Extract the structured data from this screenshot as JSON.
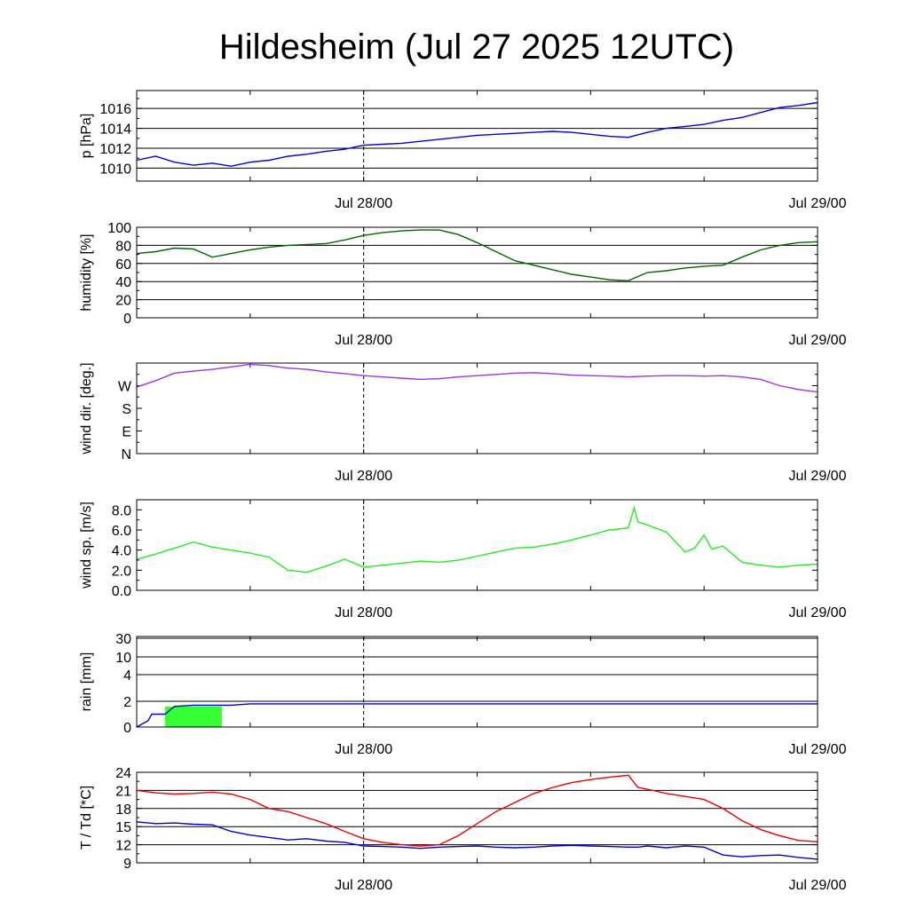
{
  "title": "Hildesheim (Jul 27 2025 12UTC)",
  "chart_data": [
    {
      "id": "pressure",
      "type": "line",
      "ylabel": "p [hPa]",
      "x": [
        0,
        1,
        2,
        3,
        4,
        5,
        6,
        7,
        8,
        9,
        10,
        11,
        12,
        13,
        14,
        15,
        16,
        17,
        18,
        19,
        20,
        21,
        22,
        23,
        24,
        25,
        26,
        27,
        28,
        29,
        30,
        31,
        32,
        33,
        34,
        35,
        36
      ],
      "xticks": [
        "Jul 28/00",
        "Jul 29/00"
      ],
      "xtick_positions": [
        12,
        36
      ],
      "marker_x": 12,
      "ylim": [
        1008.7,
        1017.8
      ],
      "yticks": [
        1010,
        1012,
        1014,
        1016
      ],
      "ytick_labels": [
        "1010",
        "1012",
        "1014",
        "1016"
      ],
      "grid": true,
      "series": [
        {
          "color": "#0000dd",
          "values": [
            1010.8,
            1011.2,
            1010.6,
            1010.3,
            1010.5,
            1010.2,
            1010.6,
            1010.8,
            1011.2,
            1011.4,
            1011.7,
            1011.9,
            1012.3,
            1012.4,
            1012.5,
            1012.7,
            1012.9,
            1013.1,
            1013.3,
            1013.4,
            1013.5,
            1013.6,
            1013.7,
            1013.6,
            1013.4,
            1013.2,
            1013.1,
            1013.6,
            1014.0,
            1014.2,
            1014.4,
            1014.8,
            1015.1,
            1015.6,
            1016.1,
            1016.3,
            1016.6
          ]
        }
      ]
    },
    {
      "id": "humidity",
      "type": "line",
      "ylabel": "humidity [%]",
      "x": [
        0,
        1,
        2,
        3,
        4,
        5,
        6,
        7,
        8,
        9,
        10,
        11,
        12,
        13,
        14,
        15,
        16,
        17,
        18,
        19,
        20,
        21,
        22,
        23,
        24,
        25,
        26,
        27,
        28,
        29,
        30,
        31,
        32,
        33,
        34,
        35,
        36
      ],
      "xticks": [
        "Jul 28/00",
        "Jul 29/00"
      ],
      "xtick_positions": [
        12,
        36
      ],
      "marker_x": 12,
      "ylim": [
        0,
        100
      ],
      "yticks": [
        0,
        20,
        40,
        60,
        80,
        100
      ],
      "ytick_labels": [
        "0",
        "20",
        "40",
        "60",
        "80",
        "100"
      ],
      "grid": true,
      "series": [
        {
          "color": "#006600",
          "values": [
            71,
            73,
            77,
            76,
            67,
            71,
            75,
            78,
            80,
            81,
            82,
            86,
            91,
            94,
            96,
            97,
            97,
            92,
            83,
            73,
            63,
            58,
            53,
            48,
            45,
            42,
            41,
            50,
            52,
            55,
            57,
            58,
            67,
            75,
            80,
            83,
            84
          ]
        }
      ]
    },
    {
      "id": "wind-direction",
      "type": "line",
      "ylabel": "wind dir. [deg.]",
      "x": [
        0,
        1,
        2,
        3,
        4,
        5,
        6,
        7,
        8,
        9,
        10,
        11,
        12,
        13,
        14,
        15,
        16,
        17,
        18,
        19,
        20,
        21,
        22,
        23,
        24,
        25,
        26,
        27,
        28,
        29,
        30,
        31,
        32,
        33,
        34,
        35,
        36
      ],
      "xticks": [
        "Jul 28/00",
        "Jul 29/00"
      ],
      "xtick_positions": [
        12,
        36
      ],
      "marker_x": 12,
      "ylim": [
        0,
        360
      ],
      "yticks": [
        0,
        90,
        180,
        270
      ],
      "ytick_labels": [
        "N",
        "E",
        "S",
        "W"
      ],
      "grid": false,
      "series": [
        {
          "color": "#9933ee",
          "values": [
            265,
            290,
            320,
            328,
            335,
            345,
            355,
            350,
            340,
            335,
            325,
            318,
            310,
            305,
            300,
            295,
            298,
            305,
            310,
            315,
            320,
            322,
            318,
            312,
            310,
            308,
            305,
            308,
            310,
            310,
            308,
            310,
            305,
            295,
            270,
            255,
            245
          ]
        }
      ]
    },
    {
      "id": "wind-speed",
      "type": "line",
      "ylabel": "wind sp. [m/s]",
      "x": [
        0,
        1,
        2,
        3,
        4,
        5,
        6,
        7,
        8,
        9,
        10,
        11,
        12,
        13,
        14,
        15,
        16,
        17,
        18,
        19,
        20,
        21,
        22,
        23,
        24,
        25,
        26,
        26.3,
        26.5,
        27,
        28,
        29,
        29.5,
        30,
        30.4,
        31,
        32,
        33,
        34,
        35,
        36
      ],
      "xticks": [
        "Jul 28/00",
        "Jul 29/00"
      ],
      "xtick_positions": [
        12,
        36
      ],
      "marker_x": 12,
      "ylim": [
        0,
        9
      ],
      "yticks": [
        0,
        2,
        4,
        6,
        8
      ],
      "ytick_labels": [
        "0.0",
        "2.0",
        "4.0",
        "6.0",
        "8.0"
      ],
      "grid": false,
      "series": [
        {
          "color": "#22ee22",
          "values": [
            3.1,
            3.6,
            4.2,
            4.8,
            4.3,
            4.0,
            3.7,
            3.3,
            2.0,
            1.8,
            2.4,
            3.1,
            2.3,
            2.5,
            2.7,
            2.9,
            2.8,
            3.0,
            3.4,
            3.8,
            4.2,
            4.3,
            4.6,
            5.0,
            5.5,
            6.0,
            6.2,
            8.2,
            6.8,
            6.5,
            5.8,
            3.8,
            4.2,
            5.5,
            4.1,
            4.4,
            2.8,
            2.5,
            2.3,
            2.5,
            2.6
          ]
        }
      ]
    },
    {
      "id": "rain",
      "type": "line",
      "ylabel": "rain [mm]",
      "x": [
        0,
        0.6,
        0.8,
        1.5,
        2.0,
        3.0,
        5.0,
        6.0,
        12.0,
        24.0,
        36.0
      ],
      "xticks": [
        "Jul 28/00",
        "Jul 29/00"
      ],
      "xtick_positions": [
        12,
        36
      ],
      "marker_x": 12,
      "scale": "piecewise",
      "ytick_values": [
        0,
        2,
        4,
        10,
        30
      ],
      "ytick_labels": [
        "0",
        "2",
        "4",
        "10",
        "30"
      ],
      "grid": true,
      "bars": [
        {
          "x0": 1.5,
          "x1": 4.5,
          "value": 1.6,
          "color": "#33ff33"
        }
      ],
      "series": [
        {
          "color": "#0000dd",
          "values": [
            0,
            0.5,
            1.0,
            1.0,
            1.6,
            1.7,
            1.7,
            1.8,
            1.8,
            1.8,
            1.8
          ]
        }
      ]
    },
    {
      "id": "temperature",
      "type": "line",
      "ylabel": "T / Td [*C]",
      "x": [
        0,
        1,
        2,
        3,
        4,
        5,
        6,
        7,
        8,
        9,
        10,
        11,
        12,
        13,
        14,
        15,
        16,
        17,
        18,
        19,
        20,
        21,
        22,
        23,
        24,
        25,
        26,
        26.5,
        27,
        28,
        29,
        30,
        31,
        32,
        33,
        34,
        35,
        36
      ],
      "xticks": [
        "Jul 28/00",
        "Jul 29/00"
      ],
      "xtick_positions": [
        12,
        36
      ],
      "marker_x": 12,
      "ylim": [
        9,
        24
      ],
      "yticks": [
        9,
        12,
        15,
        18,
        21,
        24
      ],
      "ytick_labels": [
        "9",
        "12",
        "15",
        "18",
        "21",
        "24"
      ],
      "grid": true,
      "series": [
        {
          "color": "#ee0000",
          "values": [
            21,
            20.6,
            20.4,
            20.5,
            20.7,
            20.4,
            19.5,
            18.0,
            17.5,
            16.5,
            15.5,
            14.2,
            13.0,
            12.4,
            12.0,
            11.8,
            12.0,
            13.5,
            15.5,
            17.5,
            19.0,
            20.5,
            21.5,
            22.3,
            22.8,
            23.2,
            23.5,
            21.5,
            21.2,
            20.5,
            20.0,
            19.5,
            18.0,
            16.0,
            14.5,
            13.5,
            12.7,
            12.5
          ]
        },
        {
          "color": "#0000dd",
          "values": [
            15.8,
            15.5,
            15.6,
            15.4,
            15.3,
            14.2,
            13.6,
            13.2,
            12.8,
            13.0,
            12.6,
            12.4,
            11.8,
            11.7,
            11.6,
            11.4,
            11.6,
            11.7,
            11.8,
            11.6,
            11.5,
            11.6,
            11.8,
            11.9,
            11.8,
            11.7,
            11.6,
            11.6,
            11.8,
            11.5,
            11.8,
            11.6,
            10.3,
            10.0,
            10.2,
            10.3,
            9.9,
            9.6
          ]
        }
      ]
    }
  ]
}
